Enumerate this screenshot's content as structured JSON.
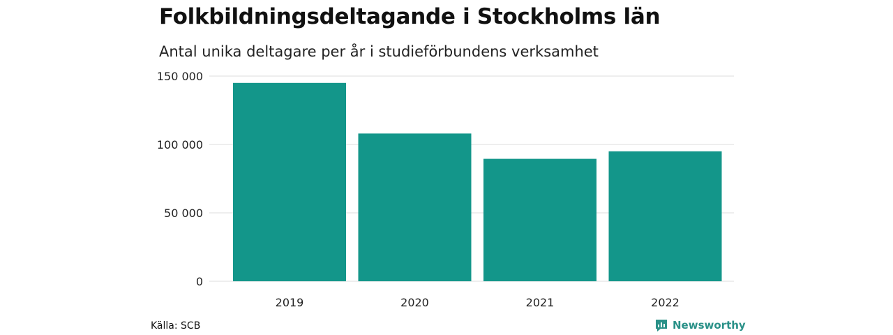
{
  "header": {
    "title": "Folkbildningsdeltagande i Stockholms län",
    "subtitle": "Antal unika deltagare per år i studieförbundens verksamhet"
  },
  "footer": {
    "source": "Källa: SCB",
    "brand": "Newsworthy",
    "brand_icon": "newsworthy-logo-icon"
  },
  "colors": {
    "bar": "#13968a",
    "grid": "#dcdcdc",
    "brand": "#2a9188"
  },
  "chart_data": {
    "type": "bar",
    "categories": [
      "2019",
      "2020",
      "2021",
      "2022"
    ],
    "values": [
      145000,
      108000,
      89500,
      95000
    ],
    "ylim": [
      0,
      150000
    ],
    "yticks": [
      0,
      50000,
      100000,
      150000
    ],
    "ytick_labels": [
      "0",
      "50 000",
      "100 000",
      "150 000"
    ],
    "grid": true,
    "legend": "none"
  }
}
